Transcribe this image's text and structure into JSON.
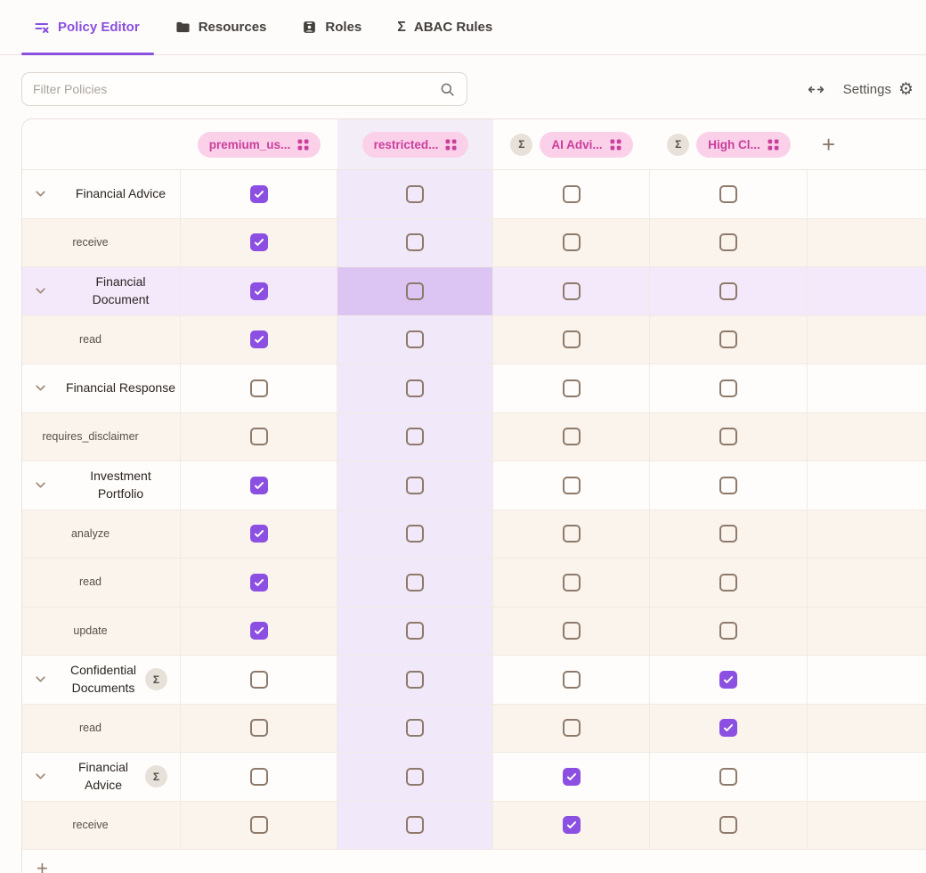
{
  "tabs": [
    {
      "label": "Policy Editor",
      "icon": "list-x-icon",
      "active": true
    },
    {
      "label": "Resources",
      "icon": "folder-icon",
      "active": false
    },
    {
      "label": "Roles",
      "icon": "id-badge-icon",
      "active": false
    },
    {
      "label": "ABAC Rules",
      "icon": "sigma-icon",
      "active": false
    }
  ],
  "toolbar": {
    "filter_placeholder": "Filter Policies",
    "settings_label": "Settings",
    "icons": [
      "arrow-left-right-icon",
      "search-icon",
      "gear-icon"
    ]
  },
  "glyphs": {
    "sigma": "Σ",
    "plus": "+",
    "gear": "⚙"
  },
  "matrix": {
    "columns": [
      {
        "label": "premium_us...",
        "sigma": false,
        "selected": false
      },
      {
        "label": "restricted...",
        "sigma": false,
        "selected": true
      },
      {
        "label": "AI Advi...",
        "sigma": true,
        "selected": false
      },
      {
        "label": "High Cl...",
        "sigma": true,
        "selected": false
      }
    ],
    "rows": [
      {
        "type": "resource",
        "label": "Financial Advice",
        "sigma": false,
        "selected": false,
        "checks": [
          true,
          false,
          false,
          false
        ]
      },
      {
        "type": "action",
        "label": "receive",
        "sigma": false,
        "selected": false,
        "checks": [
          true,
          false,
          false,
          false
        ]
      },
      {
        "type": "resource",
        "label": "Financial\nDocument",
        "sigma": false,
        "selected": true,
        "checks": [
          true,
          false,
          false,
          false
        ]
      },
      {
        "type": "action",
        "label": "read",
        "sigma": false,
        "selected": false,
        "checks": [
          true,
          false,
          false,
          false
        ]
      },
      {
        "type": "resource",
        "label": "Financial Response",
        "sigma": false,
        "selected": false,
        "checks": [
          false,
          false,
          false,
          false
        ]
      },
      {
        "type": "action",
        "label": "requires_disclaimer",
        "sigma": false,
        "selected": false,
        "checks": [
          false,
          false,
          false,
          false
        ]
      },
      {
        "type": "resource",
        "label": "Investment\nPortfolio",
        "sigma": false,
        "selected": false,
        "checks": [
          true,
          false,
          false,
          false
        ]
      },
      {
        "type": "action",
        "label": "analyze",
        "sigma": false,
        "selected": false,
        "checks": [
          true,
          false,
          false,
          false
        ]
      },
      {
        "type": "action",
        "label": "read",
        "sigma": false,
        "selected": false,
        "checks": [
          true,
          false,
          false,
          false
        ]
      },
      {
        "type": "action",
        "label": "update",
        "sigma": false,
        "selected": false,
        "checks": [
          true,
          false,
          false,
          false
        ]
      },
      {
        "type": "resource",
        "label": "Confidential\nDocuments",
        "sigma": true,
        "selected": false,
        "checks": [
          false,
          false,
          false,
          true
        ]
      },
      {
        "type": "action",
        "label": "read",
        "sigma": false,
        "selected": false,
        "checks": [
          false,
          false,
          false,
          true
        ]
      },
      {
        "type": "resource",
        "label": "Financial\nAdvice",
        "sigma": true,
        "selected": false,
        "checks": [
          false,
          false,
          true,
          false
        ]
      },
      {
        "type": "action",
        "label": "receive",
        "sigma": false,
        "selected": false,
        "checks": [
          false,
          false,
          true,
          false
        ]
      }
    ]
  },
  "colors": {
    "accent_purple": "#8b4fe1",
    "tab_active": "#8a4fdd",
    "pill_bg": "#fbd0e9",
    "pill_text": "#c9409c",
    "row_cream": "#faf4ed",
    "col_highlight": "#f1e9f9",
    "row_highlight": "#f4e9fb",
    "intersection_highlight": "#dcc5f2",
    "unchecked_border": "#8e7a6b"
  }
}
